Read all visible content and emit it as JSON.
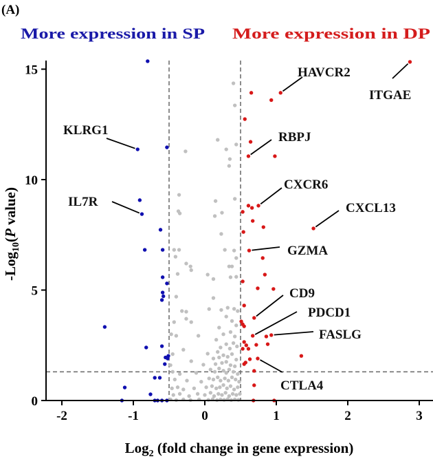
{
  "chart_data": {
    "type": "scatter",
    "panel_label": "(A)",
    "left_header": "More expression in SP",
    "right_header": "More expression in DP",
    "xlabel_main": "Log",
    "xlabel_sub": "2",
    "xlabel_rest": " (fold change in gene expression)",
    "ylabel_main": "-Log",
    "ylabel_sub": "10",
    "ylabel_open": "(",
    "ylabel_italic": "P",
    "ylabel_rest": " value)",
    "xlim": [
      -2.22,
      3.19
    ],
    "ylim": [
      0,
      15.5
    ],
    "xticks": [
      -2,
      -1,
      0,
      1,
      2,
      3
    ],
    "yticks": [
      0,
      5,
      10,
      15
    ],
    "thresholds": {
      "x": [
        -0.5,
        0.5
      ],
      "y": 1.3
    },
    "colors": {
      "down": "#1010b0",
      "up": "#d81818",
      "ns": "#c0c0c0",
      "threshold": "#707070",
      "left_header": "#1a1aa8",
      "right_header": "#d41c1c"
    },
    "series": [
      {
        "group": "down",
        "points": [
          [
            -0.8,
            15.36
          ],
          [
            -0.94,
            11.37
          ],
          [
            -0.53,
            11.46
          ],
          [
            -0.91,
            9.07
          ],
          [
            -0.88,
            8.44
          ],
          [
            -0.62,
            7.73
          ],
          [
            -0.84,
            6.82
          ],
          [
            -0.59,
            6.82
          ],
          [
            -0.59,
            5.58
          ],
          [
            -0.53,
            5.3
          ],
          [
            -0.59,
            4.89
          ],
          [
            -0.58,
            4.72
          ],
          [
            -0.6,
            4.55
          ],
          [
            -1.4,
            3.33
          ],
          [
            -0.82,
            2.4
          ],
          [
            -0.6,
            2.46
          ],
          [
            -0.52,
            1.9
          ],
          [
            -0.51,
            2.02
          ],
          [
            -0.55,
            1.95
          ],
          [
            -0.56,
            1.65
          ],
          [
            -0.7,
            1.03
          ],
          [
            -0.63,
            1.03
          ],
          [
            -1.12,
            0.59
          ],
          [
            -0.76,
            0.28
          ],
          [
            -1.16,
            0
          ],
          [
            -0.7,
            0
          ],
          [
            -0.66,
            0
          ],
          [
            -0.6,
            0
          ],
          [
            -0.53,
            0
          ]
        ]
      },
      {
        "group": "up",
        "points": [
          [
            2.87,
            15.33
          ],
          [
            0.65,
            13.93
          ],
          [
            1.06,
            13.93
          ],
          [
            0.93,
            13.6
          ],
          [
            0.56,
            12.74
          ],
          [
            0.64,
            11.71
          ],
          [
            0.61,
            11.06
          ],
          [
            0.98,
            11.06
          ],
          [
            0.61,
            8.82
          ],
          [
            0.66,
            8.72
          ],
          [
            0.75,
            8.82
          ],
          [
            0.53,
            8.54
          ],
          [
            0.67,
            8.13
          ],
          [
            0.82,
            7.85
          ],
          [
            1.52,
            7.79
          ],
          [
            0.54,
            7.63
          ],
          [
            0.62,
            6.79
          ],
          [
            0.81,
            6.45
          ],
          [
            0.84,
            5.7
          ],
          [
            0.53,
            5.39
          ],
          [
            0.74,
            5.08
          ],
          [
            0.96,
            5.05
          ],
          [
            0.55,
            4.3
          ],
          [
            0.69,
            3.74
          ],
          [
            0.51,
            3.58
          ],
          [
            0.55,
            3.36
          ],
          [
            0.53,
            3.45
          ],
          [
            0.67,
            2.93
          ],
          [
            0.86,
            2.9
          ],
          [
            0.93,
            2.96
          ],
          [
            0.55,
            2.65
          ],
          [
            0.58,
            2.5
          ],
          [
            0.72,
            2.52
          ],
          [
            0.88,
            2.55
          ],
          [
            0.53,
            2.34
          ],
          [
            0.61,
            2.34
          ],
          [
            1.35,
            2.02
          ],
          [
            0.63,
            1.87
          ],
          [
            0.74,
            1.9
          ],
          [
            0.55,
            1.65
          ],
          [
            0.57,
            1.72
          ],
          [
            0.69,
            1.34
          ],
          [
            0.69,
            0.69
          ],
          [
            0.68,
            0
          ],
          [
            0.97,
            0
          ]
        ]
      },
      {
        "group": "ns",
        "points": [
          [
            0.4,
            14.36
          ],
          [
            0.42,
            13.36
          ],
          [
            0.18,
            11.8
          ],
          [
            0.44,
            11.59
          ],
          [
            0.3,
            11.37
          ],
          [
            -0.27,
            11.28
          ],
          [
            0.35,
            10.93
          ],
          [
            0.34,
            10.62
          ],
          [
            -0.36,
            9.31
          ],
          [
            0.15,
            9.03
          ],
          [
            0.42,
            9.13
          ],
          [
            -0.37,
            8.57
          ],
          [
            -0.35,
            8.47
          ],
          [
            0.24,
            8.5
          ],
          [
            0.14,
            8.35
          ],
          [
            0.23,
            7.54
          ],
          [
            -0.43,
            6.82
          ],
          [
            -0.36,
            6.82
          ],
          [
            0.28,
            6.82
          ],
          [
            0.41,
            6.79
          ],
          [
            -0.41,
            6.51
          ],
          [
            0.44,
            6.45
          ],
          [
            -0.26,
            6.2
          ],
          [
            -0.2,
            6.07
          ],
          [
            -0.19,
            5.9
          ],
          [
            -0.38,
            5.73
          ],
          [
            0.04,
            5.7
          ],
          [
            0.12,
            5.5
          ],
          [
            0.34,
            6.07
          ],
          [
            0.38,
            6.07
          ],
          [
            0.36,
            5.58
          ],
          [
            0.44,
            5.6
          ],
          [
            -0.4,
            4.7
          ],
          [
            0.12,
            4.64
          ],
          [
            -0.32,
            4.05
          ],
          [
            -0.26,
            4.02
          ],
          [
            0.06,
            4.14
          ],
          [
            0.23,
            4.1
          ],
          [
            0.32,
            4.2
          ],
          [
            0.41,
            4.15
          ],
          [
            0.46,
            4.05
          ],
          [
            -0.43,
            3.55
          ],
          [
            -0.26,
            3.7
          ],
          [
            -0.19,
            3.55
          ],
          [
            0.3,
            3.8
          ],
          [
            0.38,
            3.6
          ],
          [
            0.44,
            3.4
          ],
          [
            0.2,
            3.3
          ],
          [
            -0.4,
            2.93
          ],
          [
            -0.09,
            2.93
          ],
          [
            0.26,
            3.0
          ],
          [
            0.36,
            3.1
          ],
          [
            0.42,
            2.9
          ],
          [
            0.16,
            2.75
          ],
          [
            -0.3,
            2.3
          ],
          [
            0.04,
            2.12
          ],
          [
            0.22,
            2.4
          ],
          [
            0.3,
            2.55
          ],
          [
            0.35,
            2.35
          ],
          [
            0.4,
            2.6
          ],
          [
            0.45,
            2.45
          ],
          [
            0.18,
            2.2
          ],
          [
            -0.19,
            1.78
          ],
          [
            -0.02,
            1.62
          ],
          [
            0.12,
            1.9
          ],
          [
            0.2,
            1.95
          ],
          [
            0.26,
            2.05
          ],
          [
            0.32,
            1.98
          ],
          [
            0.38,
            2.1
          ],
          [
            0.44,
            1.85
          ],
          [
            0.15,
            1.65
          ],
          [
            0.24,
            1.7
          ],
          [
            0.3,
            1.75
          ],
          [
            0.36,
            1.6
          ],
          [
            0.42,
            1.55
          ],
          [
            -0.45,
            1.3
          ],
          [
            -0.35,
            1.2
          ],
          [
            -0.12,
            1.25
          ],
          [
            0.08,
            1.4
          ],
          [
            0.14,
            1.3
          ],
          [
            0.2,
            1.45
          ],
          [
            0.26,
            1.35
          ],
          [
            0.3,
            1.25
          ],
          [
            0.34,
            1.4
          ],
          [
            0.4,
            1.3
          ],
          [
            0.46,
            1.2
          ],
          [
            -0.42,
            0.95
          ],
          [
            -0.25,
            0.9
          ],
          [
            -0.05,
            0.85
          ],
          [
            0.06,
            1.0
          ],
          [
            0.12,
            0.95
          ],
          [
            0.18,
            1.05
          ],
          [
            0.22,
            0.9
          ],
          [
            0.28,
            1.0
          ],
          [
            0.33,
            0.9
          ],
          [
            0.38,
            1.05
          ],
          [
            0.43,
            0.95
          ],
          [
            0.48,
            0.85
          ],
          [
            -0.46,
            0.55
          ],
          [
            -0.38,
            0.6
          ],
          [
            -0.3,
            0.5
          ],
          [
            -0.15,
            0.55
          ],
          [
            0.02,
            0.6
          ],
          [
            0.1,
            0.65
          ],
          [
            0.16,
            0.55
          ],
          [
            0.21,
            0.6
          ],
          [
            0.26,
            0.7
          ],
          [
            0.31,
            0.55
          ],
          [
            0.36,
            0.65
          ],
          [
            0.41,
            0.5
          ],
          [
            0.46,
            0.6
          ],
          [
            -0.44,
            0.25
          ],
          [
            -0.35,
            0.3
          ],
          [
            -0.22,
            0.2
          ],
          [
            -0.1,
            0.3
          ],
          [
            0.0,
            0.25
          ],
          [
            0.08,
            0.35
          ],
          [
            0.13,
            0.2
          ],
          [
            0.19,
            0.3
          ],
          [
            0.24,
            0.25
          ],
          [
            0.29,
            0.35
          ],
          [
            0.34,
            0.2
          ],
          [
            0.39,
            0.3
          ],
          [
            0.44,
            0.25
          ],
          [
            0.49,
            0.3
          ],
          [
            -0.48,
            0.05
          ],
          [
            -0.4,
            0.02
          ],
          [
            -0.3,
            0.05
          ],
          [
            -0.2,
            0.02
          ],
          [
            -0.08,
            0.05
          ],
          [
            0.05,
            0.03
          ],
          [
            0.11,
            0.06
          ],
          [
            0.17,
            0.02
          ],
          [
            0.22,
            0.05
          ],
          [
            0.27,
            0.03
          ],
          [
            0.32,
            0.06
          ],
          [
            0.37,
            0.02
          ],
          [
            0.42,
            0.05
          ],
          [
            0.47,
            0.03
          ],
          [
            -0.48,
            1.6
          ],
          [
            -0.45,
            2.1
          ],
          [
            -0.47,
            3.0
          ]
        ]
      }
    ],
    "annotations": [
      {
        "text": "KLRG1",
        "x": -0.94,
        "y": 11.37
      },
      {
        "text": "IL7R",
        "x": -0.88,
        "y": 8.44
      },
      {
        "text": "HAVCR2",
        "x": 1.06,
        "y": 13.93
      },
      {
        "text": "ITGAE",
        "x": 2.87,
        "y": 15.33
      },
      {
        "text": "RBPJ",
        "x": 0.61,
        "y": 11.06
      },
      {
        "text": "CXCR6",
        "x": 0.75,
        "y": 8.82
      },
      {
        "text": "CXCL13",
        "x": 1.52,
        "y": 7.79
      },
      {
        "text": "GZMA",
        "x": 0.62,
        "y": 6.79
      },
      {
        "text": "CD9",
        "x": 0.69,
        "y": 3.74
      },
      {
        "text": "PDCD1",
        "x": 0.67,
        "y": 2.93
      },
      {
        "text": "FASLG",
        "x": 0.93,
        "y": 2.96
      },
      {
        "text": "CTLA4",
        "x": 0.74,
        "y": 1.9
      }
    ]
  }
}
